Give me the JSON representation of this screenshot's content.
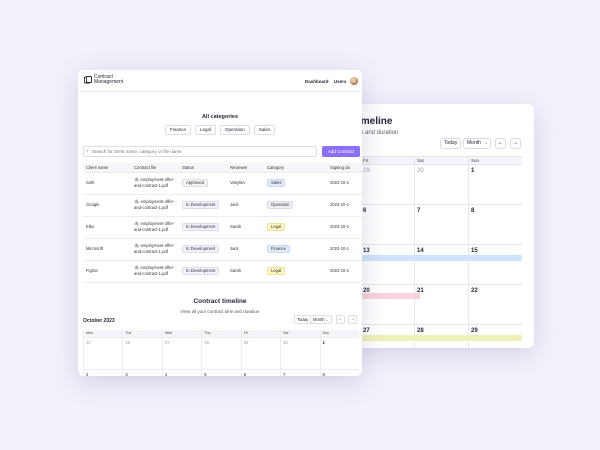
{
  "back_window": {
    "title": "imeline",
    "subtitle": "e and duration",
    "today": "Today",
    "view": "Month",
    "prev": "←",
    "next": "→",
    "day_headers": [
      "Fri",
      "Sat",
      "Sun"
    ],
    "rows": [
      [
        "29",
        "30",
        "1"
      ],
      [
        "6",
        "7",
        "8"
      ],
      [
        "13",
        "14",
        "15"
      ],
      [
        "20",
        "21",
        "22"
      ],
      [
        "27",
        "28",
        "29"
      ]
    ]
  },
  "header": {
    "brand_line1": "Contract",
    "brand_line2": "Management",
    "nav_dashboard": "Dashboard",
    "nav_users": "Users"
  },
  "categories": {
    "title": "All categories",
    "items": [
      "Finance",
      "Legal",
      "Operation",
      "Sales"
    ]
  },
  "search": {
    "placeholder": "Search for client name, category or file name",
    "add_button": "Add Contract"
  },
  "table": {
    "columns": [
      "Client name",
      "Contract file",
      "Status",
      "Reviewer",
      "Category",
      "Signing da"
    ],
    "rows": [
      {
        "client": "Sofit",
        "file_a": "employment-offer-",
        "file_b": "and-contract-1.pdf",
        "status": "Approved",
        "status_kind": "approved",
        "reviewer": "Vasyliev",
        "category": "Sales",
        "category_kind": "sales",
        "date": "2023-10-1"
      },
      {
        "client": "Google",
        "file_a": "employment-offer-",
        "file_b": "and-contract-1.pdf",
        "status": "In Development",
        "status_kind": "dev",
        "reviewer": "Jack",
        "category": "Operation",
        "category_kind": "operation",
        "date": "2023-10-1"
      },
      {
        "client": "Elko",
        "file_a": "employment-offer-",
        "file_b": "and-contract-1.pdf",
        "status": "In Development",
        "status_kind": "dev",
        "reviewer": "Sarah",
        "category": "Legal",
        "category_kind": "legal",
        "date": "2023-10-1"
      },
      {
        "client": "Microsoft",
        "file_a": "employment-offer-",
        "file_b": "and-contract-1.pdf",
        "status": "In Development",
        "status_kind": "dev",
        "reviewer": "Jack",
        "category": "Finance",
        "category_kind": "finance",
        "date": "2023-10-1"
      },
      {
        "client": "Figma",
        "file_a": "employment-offer-",
        "file_b": "and-contract-1.pdf",
        "status": "In Development",
        "status_kind": "dev",
        "reviewer": "Sarah",
        "category": "Legal",
        "category_kind": "legal",
        "date": "2023-10-1"
      }
    ]
  },
  "timeline": {
    "title": "Contract timeline",
    "subtitle": "View all your contract time and duration",
    "month_label": "October 2023",
    "today": "Today",
    "view": "Month",
    "prev": "←",
    "next": "→",
    "day_headers": [
      "Mon",
      "Tue",
      "Wed",
      "Thu",
      "Fri",
      "Sat",
      "Sun"
    ],
    "rows": [
      [
        "25",
        "26",
        "27",
        "28",
        "29",
        "30",
        "1"
      ],
      [
        "2",
        "3",
        "4",
        "5",
        "6",
        "7",
        "8"
      ]
    ]
  },
  "colors": {
    "accent": "#8d6ff5",
    "bar_blue": "#cfe3fb",
    "bar_pink": "#f7d4dc",
    "bar_yellow": "#eef2b8"
  }
}
